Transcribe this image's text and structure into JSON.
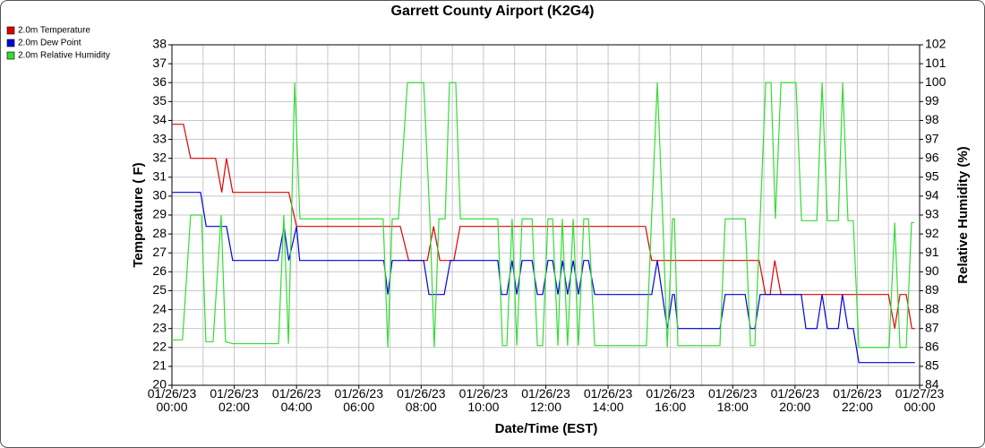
{
  "chart_data": {
    "type": "line",
    "title": "Garrett County Airport (K2G4)",
    "x_label": "Date/Time (EST)",
    "y_label": "Temperature ( F)",
    "y2_label": "Relative Humidity (%)",
    "xlim": [
      0,
      24
    ],
    "xticks": [
      {
        "value": 0,
        "label": "01/26/23\n00:00"
      },
      {
        "value": 2,
        "label": "01/26/23\n02:00"
      },
      {
        "value": 4,
        "label": "01/26/23\n04:00"
      },
      {
        "value": 6,
        "label": "01/26/23\n06:00"
      },
      {
        "value": 8,
        "label": "01/26/23\n08:00"
      },
      {
        "value": 10,
        "label": "01/26/23\n10:00"
      },
      {
        "value": 12,
        "label": "01/26/23\n12:00"
      },
      {
        "value": 14,
        "label": "01/26/23\n14:00"
      },
      {
        "value": 16,
        "label": "01/26/23\n16:00"
      },
      {
        "value": 18,
        "label": "01/26/23\n18:00"
      },
      {
        "value": 20,
        "label": "01/26/23\n20:00"
      },
      {
        "value": 22,
        "label": "01/26/23\n22:00"
      },
      {
        "value": 24,
        "label": "01/27/23\n00:00"
      }
    ],
    "xminorticks": [
      1,
      3,
      5,
      7,
      9,
      11,
      13,
      15,
      17,
      19,
      21,
      23
    ],
    "ylim": [
      20,
      38
    ],
    "yticks": [
      20,
      21,
      22,
      23,
      24,
      25,
      26,
      27,
      28,
      29,
      30,
      31,
      32,
      33,
      34,
      35,
      36,
      37,
      38
    ],
    "y2lim": [
      84,
      102
    ],
    "y2ticks": [
      84,
      85,
      86,
      87,
      88,
      89,
      90,
      91,
      92,
      93,
      94,
      95,
      96,
      97,
      98,
      99,
      100,
      101,
      102
    ],
    "grid": true,
    "legend": "top-left",
    "series": [
      {
        "name": "2.0m Temperature",
        "color": "#e00000",
        "x": [
          0,
          0.37,
          0.6,
          1.4,
          1.6,
          1.75,
          1.95,
          3.75,
          4.0,
          7.33,
          7.6,
          8.2,
          8.4,
          8.6,
          9.05,
          9.25,
          15.2,
          15.4,
          18.85,
          19.05,
          19.2,
          19.35,
          19.55,
          23.0,
          23.2,
          23.37,
          23.57,
          23.75,
          23.85
        ],
        "values": [
          33.8,
          33.8,
          32,
          32,
          30.2,
          32,
          30.2,
          30.2,
          28.4,
          28.4,
          26.6,
          26.6,
          28.4,
          26.6,
          26.6,
          28.4,
          28.4,
          26.6,
          26.6,
          24.8,
          24.8,
          26.6,
          24.8,
          24.8,
          23,
          24.8,
          24.8,
          23,
          23
        ]
      },
      {
        "name": "2.0m Dew Point",
        "color": "#0000dd",
        "x": [
          0,
          0.92,
          1.1,
          1.75,
          1.95,
          3.4,
          3.6,
          3.75,
          4.0,
          4.1,
          6.8,
          6.93,
          7.07,
          8.08,
          8.25,
          8.74,
          8.94,
          10.46,
          10.58,
          10.75,
          10.92,
          11.07,
          11.24,
          11.56,
          11.73,
          11.9,
          12.07,
          12.22,
          12.39,
          12.54,
          12.7,
          12.88,
          13.05,
          13.22,
          13.37,
          13.57,
          15.4,
          15.58,
          15.9,
          16.07,
          16.13,
          16.24,
          17.59,
          17.76,
          18.4,
          18.57,
          18.71,
          18.88,
          20.2,
          20.35,
          20.7,
          20.87,
          21.04,
          21.39,
          21.52,
          21.7,
          21.87,
          22.05,
          23.85
        ],
        "values": [
          30.2,
          30.2,
          28.4,
          28.4,
          26.6,
          26.6,
          28.4,
          26.6,
          28.4,
          26.6,
          26.6,
          24.8,
          26.6,
          26.6,
          24.8,
          24.8,
          26.6,
          26.6,
          24.8,
          24.8,
          26.6,
          24.8,
          26.6,
          26.6,
          24.8,
          24.8,
          26.6,
          26.6,
          24.8,
          26.6,
          24.8,
          26.6,
          24.8,
          26.6,
          26.6,
          24.8,
          24.8,
          26.6,
          23,
          24.8,
          24.8,
          23,
          23,
          24.8,
          24.8,
          23,
          23,
          24.8,
          24.8,
          23,
          23,
          24.8,
          23,
          23,
          24.8,
          23,
          23,
          21.2,
          21.2
        ]
      },
      {
        "name": "2.0m Relative Humidity",
        "color": "#33dd33",
        "axis": "y2",
        "x": [
          0,
          0.34,
          0.6,
          0.95,
          1.09,
          1.32,
          1.58,
          1.72,
          1.95,
          3.42,
          3.59,
          3.74,
          3.94,
          4.11,
          6.78,
          6.93,
          7.07,
          7.27,
          7.56,
          8.08,
          8.28,
          8.42,
          8.57,
          8.77,
          8.91,
          9.11,
          9.26,
          10.46,
          10.61,
          10.75,
          10.92,
          11.07,
          11.24,
          11.56,
          11.73,
          11.9,
          12.07,
          12.22,
          12.39,
          12.53,
          12.7,
          12.88,
          13.05,
          13.22,
          13.37,
          13.57,
          15.23,
          15.4,
          15.58,
          15.75,
          15.9,
          16.07,
          16.13,
          16.24,
          17.59,
          17.76,
          18.4,
          18.57,
          18.71,
          18.88,
          19.06,
          19.23,
          19.37,
          19.55,
          20.03,
          20.21,
          20.7,
          20.87,
          21.04,
          21.39,
          21.53,
          21.7,
          21.87,
          22.05,
          23.02,
          23.2,
          23.37,
          23.57,
          23.74,
          23.83
        ],
        "values": [
          86.4,
          86.4,
          93,
          93,
          86.3,
          86.3,
          93,
          86.3,
          86.2,
          86.2,
          93,
          86.2,
          100,
          92.8,
          92.8,
          86,
          92.8,
          92.8,
          100,
          100,
          92.8,
          86,
          92.8,
          92.8,
          100,
          100,
          92.8,
          92.8,
          86.1,
          86.1,
          92.8,
          86.1,
          92.8,
          92.8,
          86.1,
          86.1,
          92.8,
          92.8,
          86.1,
          92.8,
          86.1,
          92.8,
          86.1,
          92.8,
          92.8,
          86.1,
          86.1,
          93,
          100,
          93,
          86,
          92.8,
          92.8,
          86.1,
          86.1,
          92.8,
          92.8,
          86.1,
          86.1,
          92.8,
          100,
          100,
          92.8,
          100,
          100,
          92.7,
          92.7,
          100,
          92.7,
          92.7,
          100,
          92.7,
          92.7,
          86,
          86,
          92.6,
          86,
          86,
          92.6,
          92.6
        ]
      }
    ]
  }
}
